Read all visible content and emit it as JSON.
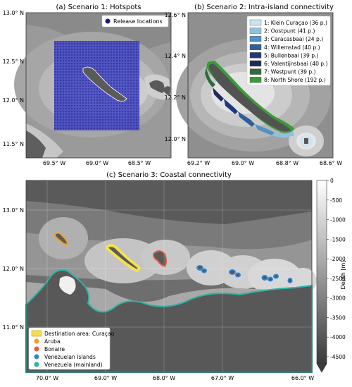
{
  "panel_a": {
    "title": "(a) Scenario 1: Hotspots",
    "legend": "Release locations",
    "y_ticks": [
      "13.0° N",
      "12.5° N",
      "12.0° N",
      "11.5° N"
    ],
    "x_ticks": [
      "69.5° W",
      "69.0° W",
      "68.5° W"
    ]
  },
  "panel_b": {
    "title": "(b) Scenario 2: Intra-island connectivity",
    "y_ticks": [
      "12.6° N",
      "12.4° N",
      "12.2° N",
      "12.0° N"
    ],
    "x_ticks": [
      "69.2° W",
      "69.0° W",
      "68.8° W",
      "68.6° W"
    ],
    "legend": [
      {
        "label": "1: Klein Curaçao (36 p.)",
        "color": "#cfe3f0"
      },
      {
        "label": "2: Oostpunt (41 p.)",
        "color": "#8fc1de"
      },
      {
        "label": "3: Caracasbaai (24 p.)",
        "color": "#4f93c4"
      },
      {
        "label": "4: Willemstad (40 p.)",
        "color": "#2e5f97"
      },
      {
        "label": "5: Bullenbaai (39 p.)",
        "color": "#1f3a7a"
      },
      {
        "label": "6: Valentijnsbaai (40 p.)",
        "color": "#22285a"
      },
      {
        "label": "7: Westpunt (39 p.)",
        "color": "#2e6b3c"
      },
      {
        "label": "8: North Shore (192 p.)",
        "color": "#3a9a3a"
      }
    ]
  },
  "panel_c": {
    "title": "(c) Scenario 3: Coastal connectivity",
    "y_ticks": [
      "13.0° N",
      "12.0° N",
      "11.0° N"
    ],
    "x_ticks": [
      "70.0° W",
      "69.0° W",
      "68.0° W",
      "67.0° W",
      "66.0° W"
    ],
    "legend": [
      {
        "label": "Destination area: Curaçao",
        "color": "#f4e04d"
      },
      {
        "label": "Aruba",
        "color": "#f0a020"
      },
      {
        "label": "Bonaire",
        "color": "#ee5a3a"
      },
      {
        "label": "Venezuelan Islands",
        "color": "#2c86d6"
      },
      {
        "label": "Venezuela (mainland)",
        "color": "#2bb3a3"
      }
    ],
    "colorbar": {
      "label": "Depth [m]",
      "ticks": [
        "0",
        "-500",
        "-1000",
        "-1500",
        "-2000",
        "-2500",
        "-3000",
        "-3500",
        "-4000",
        "-4500"
      ]
    }
  }
}
